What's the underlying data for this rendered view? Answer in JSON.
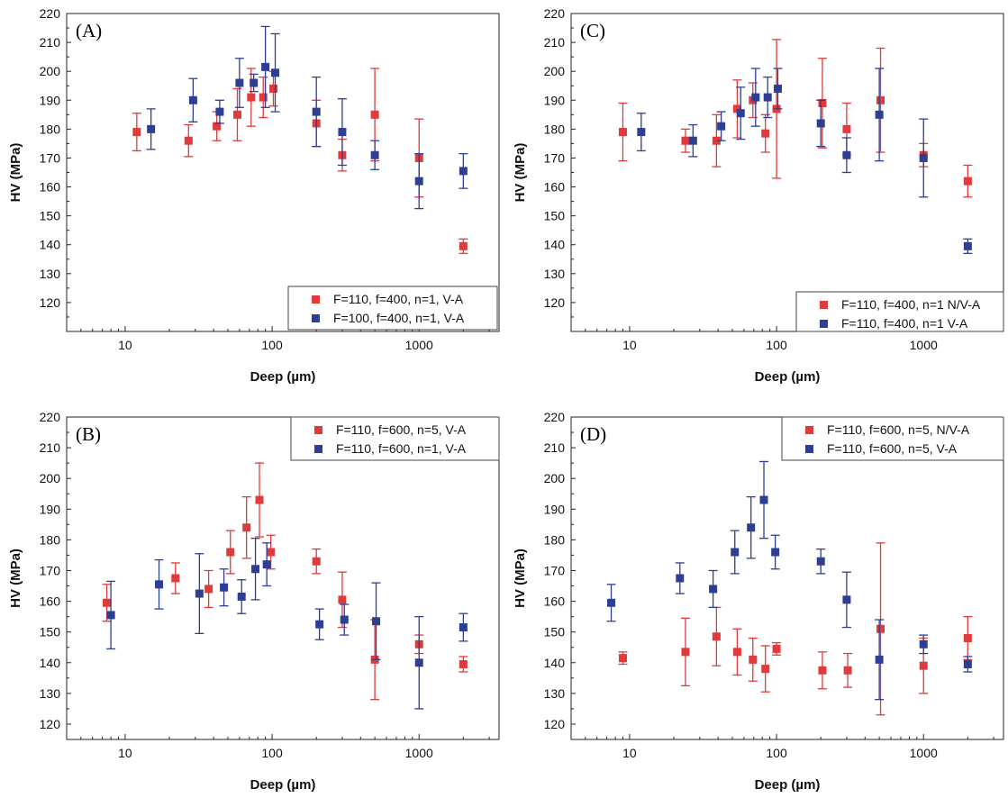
{
  "colors": {
    "red": "#e03a3a",
    "blue": "#2e3e92"
  },
  "chart_data": [
    {
      "id": "A",
      "type": "scatter",
      "panel_label": "(A)",
      "xlabel": "Deep (µm)",
      "ylabel": "HV (MPa)",
      "xscale": "log",
      "xlim": [
        4,
        3500
      ],
      "ylim": [
        110,
        220
      ],
      "x_ticks": [
        10,
        100,
        1000
      ],
      "x_tick_labels": [
        "10",
        "100",
        "1000"
      ],
      "y_ticks": [
        120,
        130,
        140,
        150,
        160,
        170,
        180,
        190,
        200,
        210,
        220
      ],
      "legend_position": "bottom-right",
      "grid": false,
      "series": [
        {
          "name": "F=110, f=400, n=1, V-A",
          "color": "red",
          "points": [
            {
              "x": 12,
              "y": 179,
              "err": 6.5
            },
            {
              "x": 27,
              "y": 176,
              "err": 5.5
            },
            {
              "x": 42,
              "y": 181,
              "err": 5
            },
            {
              "x": 58,
              "y": 185,
              "err": 9
            },
            {
              "x": 72,
              "y": 191,
              "err": 10
            },
            {
              "x": 87,
              "y": 191,
              "err": 7
            },
            {
              "x": 102,
              "y": 194,
              "err": 6
            },
            {
              "x": 200,
              "y": 182,
              "err": 8
            },
            {
              "x": 300,
              "y": 171,
              "err": 5.5
            },
            {
              "x": 500,
              "y": 185,
              "err": 16
            },
            {
              "x": 1000,
              "y": 170,
              "err": 13.5
            },
            {
              "x": 2000,
              "y": 139.5,
              "err": 2.5
            }
          ]
        },
        {
          "name": "F=100, f=400, n=1, V-A",
          "color": "blue",
          "points": [
            {
              "x": 15,
              "y": 180,
              "err": 7
            },
            {
              "x": 29,
              "y": 190,
              "err": 7.5
            },
            {
              "x": 44,
              "y": 186,
              "err": 4
            },
            {
              "x": 60,
              "y": 196,
              "err": 8.5
            },
            {
              "x": 75,
              "y": 196,
              "err": 3
            },
            {
              "x": 90,
              "y": 201.5,
              "err": 14
            },
            {
              "x": 105,
              "y": 199.5,
              "err": 13.5
            },
            {
              "x": 200,
              "y": 186,
              "err": 12
            },
            {
              "x": 300,
              "y": 179,
              "err": 11.5
            },
            {
              "x": 500,
              "y": 171,
              "err": 5
            },
            {
              "x": 1000,
              "y": 162,
              "err": 9.5
            },
            {
              "x": 2000,
              "y": 165.5,
              "err": 6
            }
          ]
        }
      ]
    },
    {
      "id": "C",
      "type": "scatter",
      "panel_label": "(C)",
      "xlabel": "Deep (µm)",
      "ylabel": "HV (MPa)",
      "xscale": "log",
      "xlim": [
        4,
        3500
      ],
      "ylim": [
        110,
        220
      ],
      "x_ticks": [
        10,
        100,
        1000
      ],
      "x_tick_labels": [
        "10",
        "100",
        "1000"
      ],
      "y_ticks": [
        120,
        130,
        140,
        150,
        160,
        170,
        180,
        190,
        200,
        210,
        220
      ],
      "legend_position": "bottom-right",
      "grid": false,
      "series": [
        {
          "name": "F=110, f=400, n=1 N/V-A",
          "color": "red",
          "points": [
            {
              "x": 9,
              "y": 179,
              "err": 10
            },
            {
              "x": 24,
              "y": 176,
              "err": 4
            },
            {
              "x": 39,
              "y": 176,
              "err": 9
            },
            {
              "x": 54,
              "y": 187,
              "err": 10
            },
            {
              "x": 69,
              "y": 190,
              "err": 6
            },
            {
              "x": 84,
              "y": 178.5,
              "err": 6.5
            },
            {
              "x": 100,
              "y": 187,
              "err": 24
            },
            {
              "x": 205,
              "y": 189,
              "err": 15.5
            },
            {
              "x": 300,
              "y": 180,
              "err": 9
            },
            {
              "x": 510,
              "y": 190,
              "err": 18
            },
            {
              "x": 1000,
              "y": 171,
              "err": 4
            },
            {
              "x": 2000,
              "y": 162,
              "err": 5.5
            }
          ]
        },
        {
          "name": "F=110, f=400, n=1 V-A",
          "color": "blue",
          "points": [
            {
              "x": 12,
              "y": 179,
              "err": 6.5
            },
            {
              "x": 27,
              "y": 176,
              "err": 5.5
            },
            {
              "x": 42,
              "y": 181,
              "err": 5
            },
            {
              "x": 57,
              "y": 185.5,
              "err": 9
            },
            {
              "x": 72,
              "y": 191,
              "err": 10
            },
            {
              "x": 87,
              "y": 191,
              "err": 7
            },
            {
              "x": 102,
              "y": 194,
              "err": 7
            },
            {
              "x": 200,
              "y": 182,
              "err": 8
            },
            {
              "x": 300,
              "y": 171,
              "err": 6
            },
            {
              "x": 500,
              "y": 185,
              "err": 16
            },
            {
              "x": 1000,
              "y": 170,
              "err": 13.5
            },
            {
              "x": 2000,
              "y": 139.5,
              "err": 2.5
            }
          ]
        }
      ]
    },
    {
      "id": "B",
      "type": "scatter",
      "panel_label": "(B)",
      "xlabel": "Deep (µm)",
      "ylabel": "HV (MPa)",
      "xscale": "log",
      "xlim": [
        4,
        3500
      ],
      "ylim": [
        115,
        220
      ],
      "x_ticks": [
        10,
        100,
        1000
      ],
      "x_tick_labels": [
        "10",
        "100",
        "1000"
      ],
      "y_ticks": [
        120,
        130,
        140,
        150,
        160,
        170,
        180,
        190,
        200,
        210,
        220
      ],
      "legend_position": "top-right",
      "grid": false,
      "series": [
        {
          "name": "F=110, f=600, n=5, V-A",
          "color": "red",
          "points": [
            {
              "x": 7.5,
              "y": 159.5,
              "err": 6
            },
            {
              "x": 22,
              "y": 167.5,
              "err": 5
            },
            {
              "x": 37,
              "y": 164,
              "err": 6
            },
            {
              "x": 52,
              "y": 176,
              "err": 7
            },
            {
              "x": 67,
              "y": 184,
              "err": 10
            },
            {
              "x": 82,
              "y": 193,
              "err": 12
            },
            {
              "x": 98,
              "y": 176,
              "err": 5.5
            },
            {
              "x": 200,
              "y": 173,
              "err": 4
            },
            {
              "x": 300,
              "y": 160.5,
              "err": 9
            },
            {
              "x": 500,
              "y": 141,
              "err": 13
            },
            {
              "x": 1000,
              "y": 146,
              "err": 3
            },
            {
              "x": 2000,
              "y": 139.5,
              "err": 2.5
            }
          ]
        },
        {
          "name": "F=110, f=600, n=1, V-A",
          "color": "blue",
          "points": [
            {
              "x": 8,
              "y": 155.5,
              "err": 11
            },
            {
              "x": 17,
              "y": 165.5,
              "err": 8
            },
            {
              "x": 32,
              "y": 162.5,
              "err": 13
            },
            {
              "x": 47,
              "y": 164.5,
              "err": 6
            },
            {
              "x": 62,
              "y": 161.5,
              "err": 5.5
            },
            {
              "x": 77,
              "y": 170.5,
              "err": 10
            },
            {
              "x": 92,
              "y": 172,
              "err": 7
            },
            {
              "x": 210,
              "y": 152.5,
              "err": 5
            },
            {
              "x": 310,
              "y": 154,
              "err": 5
            },
            {
              "x": 510,
              "y": 153.5,
              "err": 12.5
            },
            {
              "x": 1000,
              "y": 140,
              "err": 15
            },
            {
              "x": 2000,
              "y": 151.5,
              "err": 4.5
            }
          ]
        }
      ]
    },
    {
      "id": "D",
      "type": "scatter",
      "panel_label": "(D)",
      "xlabel": "Deep (µm)",
      "ylabel": "HV (MPa)",
      "xscale": "log",
      "xlim": [
        4,
        3500
      ],
      "ylim": [
        115,
        220
      ],
      "x_ticks": [
        10,
        100,
        1000
      ],
      "x_tick_labels": [
        "10",
        "100",
        "1000"
      ],
      "y_ticks": [
        120,
        130,
        140,
        150,
        160,
        170,
        180,
        190,
        200,
        210,
        220
      ],
      "legend_position": "top-right",
      "grid": false,
      "series": [
        {
          "name": "F=110, f=600, n=5, N/V-A",
          "color": "red",
          "points": [
            {
              "x": 9,
              "y": 141.5,
              "err": 2
            },
            {
              "x": 24,
              "y": 143.5,
              "err": 11
            },
            {
              "x": 39,
              "y": 148.5,
              "err": 9.5
            },
            {
              "x": 54,
              "y": 143.5,
              "err": 7.5
            },
            {
              "x": 69,
              "y": 141,
              "err": 7
            },
            {
              "x": 84,
              "y": 138,
              "err": 7.5
            },
            {
              "x": 100,
              "y": 144.5,
              "err": 2
            },
            {
              "x": 205,
              "y": 137.5,
              "err": 6
            },
            {
              "x": 305,
              "y": 137.5,
              "err": 5.5
            },
            {
              "x": 510,
              "y": 151,
              "err": 28
            },
            {
              "x": 1000,
              "y": 139,
              "err": 9
            },
            {
              "x": 2000,
              "y": 148,
              "err": 7
            }
          ]
        },
        {
          "name": "F=110, f=600, n=5, V-A",
          "color": "blue",
          "points": [
            {
              "x": 7.5,
              "y": 159.5,
              "err": 6
            },
            {
              "x": 22,
              "y": 167.5,
              "err": 5
            },
            {
              "x": 37,
              "y": 164,
              "err": 6
            },
            {
              "x": 52,
              "y": 176,
              "err": 7
            },
            {
              "x": 67,
              "y": 184,
              "err": 10
            },
            {
              "x": 82,
              "y": 193,
              "err": 12.5
            },
            {
              "x": 98,
              "y": 176,
              "err": 5.5
            },
            {
              "x": 200,
              "y": 173,
              "err": 4
            },
            {
              "x": 300,
              "y": 160.5,
              "err": 9
            },
            {
              "x": 500,
              "y": 141,
              "err": 13
            },
            {
              "x": 1000,
              "y": 146,
              "err": 3
            },
            {
              "x": 2000,
              "y": 139.5,
              "err": 2.5
            }
          ]
        }
      ]
    }
  ]
}
